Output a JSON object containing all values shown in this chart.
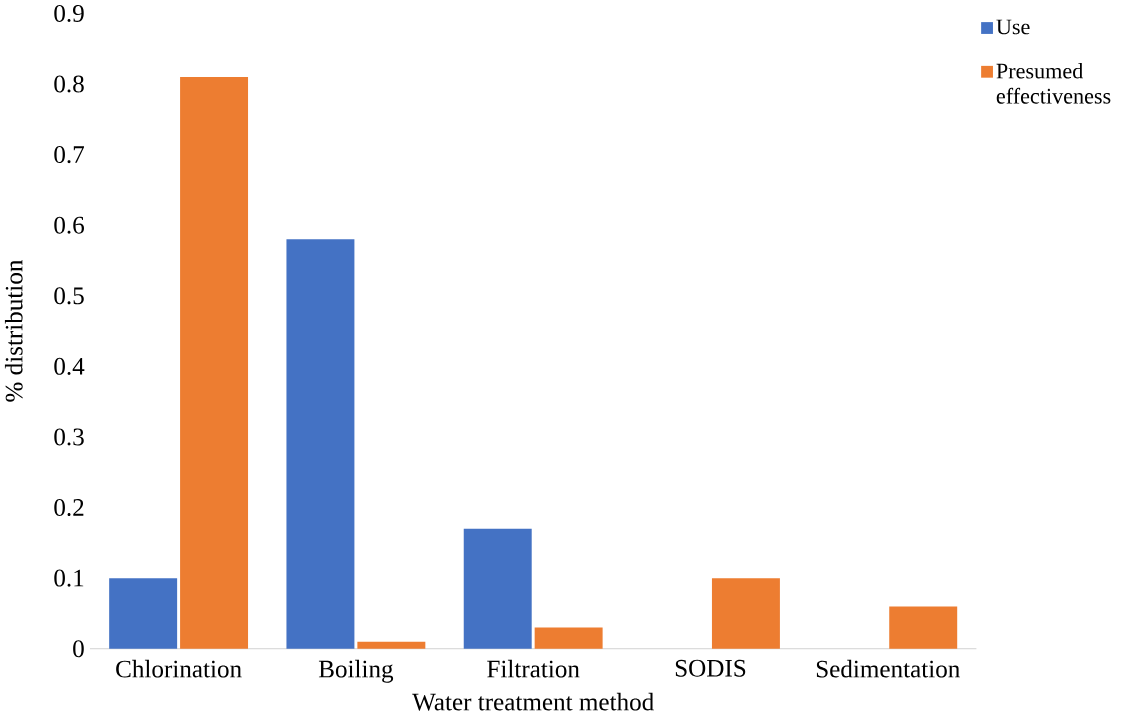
{
  "chart_data": {
    "type": "bar",
    "xlabel": "Water treatment method",
    "ylabel": "% distribution",
    "categories": [
      "Chlorination",
      "Boiling",
      "Filtration",
      "SODIS",
      "Sedimentation"
    ],
    "series": [
      {
        "name": "Use",
        "color": "#4472c4",
        "values": [
          0.1,
          0.58,
          0.17,
          0,
          0
        ]
      },
      {
        "name": "Presumed effectiveness",
        "color": "#ed7d31",
        "values": [
          0.81,
          0.01,
          0.03,
          0.1,
          0.06
        ]
      }
    ],
    "ylim": [
      0,
      0.9
    ],
    "yticks": [
      0,
      0.1,
      0.2,
      0.3,
      0.4,
      0.5,
      0.6,
      0.7,
      0.8,
      0.9
    ],
    "legend": "top right"
  }
}
